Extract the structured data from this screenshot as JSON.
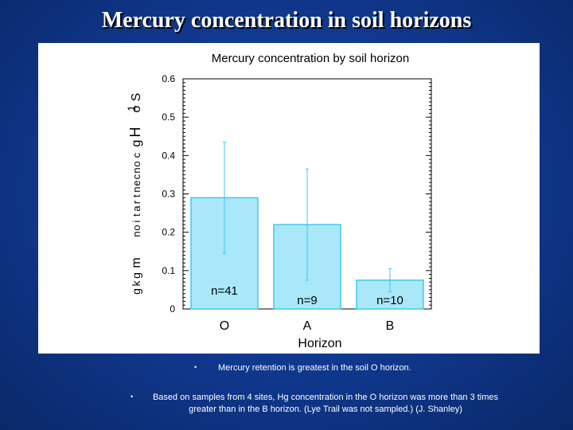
{
  "slide": {
    "title": "Mercury concentration in soil horizons"
  },
  "chart_data": {
    "type": "bar",
    "title": "Mercury concentration by soil horizon",
    "xlabel": "Horizon",
    "ylabel_fragments": [
      "S",
      "o",
      "H",
      "g",
      "c",
      "o",
      "n",
      "c",
      "e",
      "n",
      "t",
      "r",
      "a",
      "t",
      "i",
      "o",
      "n",
      "m",
      "g",
      "k",
      "g",
      "1"
    ],
    "categories": [
      "O",
      "A",
      "B"
    ],
    "values": [
      0.29,
      0.22,
      0.075
    ],
    "error_upper": [
      0.435,
      0.365,
      0.105
    ],
    "error_lower": [
      0.145,
      0.075,
      0.045
    ],
    "sample_labels": [
      "n=41",
      "n=9",
      "n=10"
    ],
    "ylim": [
      0,
      0.6
    ],
    "yticks": [
      0,
      0.1,
      0.2,
      0.3,
      0.4,
      0.5,
      0.6
    ],
    "ytick_labels": [
      "0",
      "0.1",
      "0.2",
      "0.3",
      "0.4",
      "0.5",
      "0.6"
    ],
    "grid": false,
    "bar_color": "#a8e8f8",
    "bar_edge_color": "#40c8f0",
    "error_color": "#40c8f0"
  },
  "bullets": [
    "Mercury retention is greatest in the soil O horizon.",
    "Based on samples from 4 sites, Hg concentration in the O horizon was more than 3 times greater than in the B horizon. (Lye Trail was not sampled.) (J. Shanley)"
  ],
  "bullet_marker": "•"
}
